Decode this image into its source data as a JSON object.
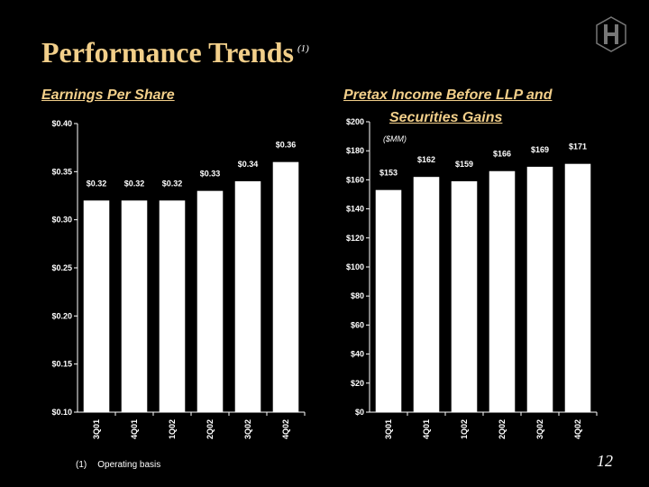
{
  "title": "Performance Trends",
  "title_note": "(1)",
  "footnote": {
    "mark": "(1)",
    "text": "Operating basis"
  },
  "page_number": "12",
  "chart_data": [
    {
      "type": "bar",
      "title": "Earnings Per Share",
      "categories": [
        "3Q01",
        "4Q01",
        "1Q02",
        "2Q02",
        "3Q02",
        "4Q02"
      ],
      "values": [
        0.32,
        0.32,
        0.32,
        0.33,
        0.34,
        0.36
      ],
      "value_labels": [
        "$0.32",
        "$0.32",
        "$0.32",
        "$0.33",
        "$0.34",
        "$0.36"
      ],
      "yticks": [
        "$0.10",
        "$0.15",
        "$0.20",
        "$0.25",
        "$0.30",
        "$0.35",
        "$0.40"
      ],
      "ylim": [
        0.1,
        0.4
      ],
      "bar_color": "#FFFFFF",
      "grid": false
    },
    {
      "type": "bar",
      "title": "Pretax Income Before LLP and",
      "title_line2": "Securities Gains",
      "unit_label": "($MM)",
      "categories": [
        "3Q01",
        "4Q01",
        "1Q02",
        "2Q02",
        "3Q02",
        "4Q02"
      ],
      "values": [
        153,
        162,
        159,
        166,
        169,
        171
      ],
      "value_labels": [
        "$153",
        "$162",
        "$159",
        "$166",
        "$169",
        "$171"
      ],
      "yticks": [
        "$0",
        "$20",
        "$40",
        "$60",
        "$80",
        "$100",
        "$120",
        "$140",
        "$160",
        "$180",
        "$200"
      ],
      "ylim": [
        0,
        200
      ],
      "bar_color": "#FFFFFF",
      "grid": false
    }
  ]
}
